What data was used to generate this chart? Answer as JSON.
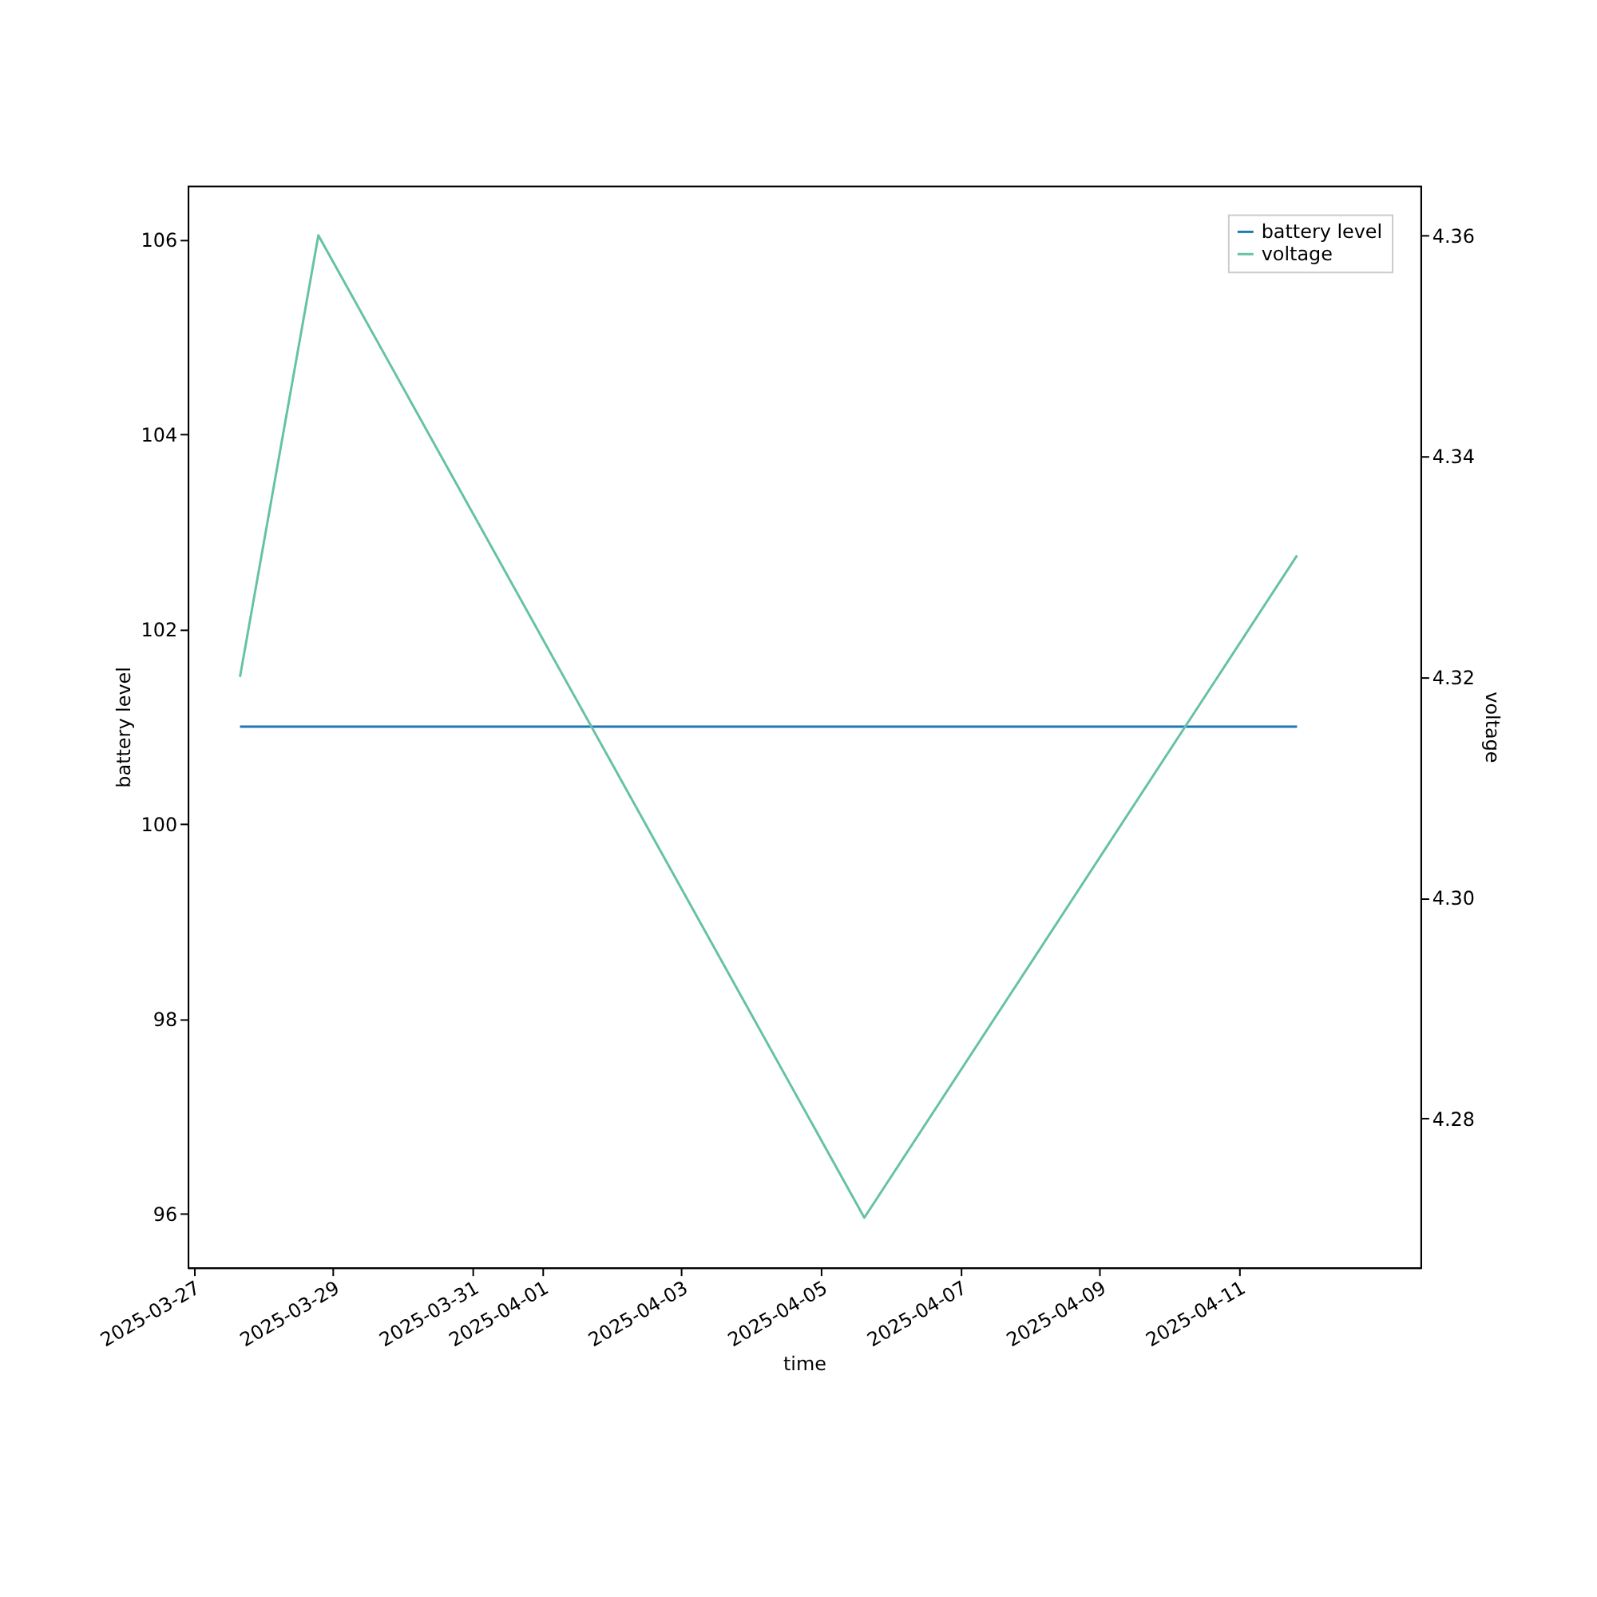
{
  "chart_data": {
    "type": "line",
    "xlabel": "time",
    "ylabel": "battery level",
    "y2label": "voltage",
    "xlim": [
      "2025-03-26T22:00",
      "2025-04-13T14:30"
    ],
    "xticks": [
      {
        "value": "2025-03-27",
        "label": "2025-03-27"
      },
      {
        "value": "2025-03-29",
        "label": "2025-03-29"
      },
      {
        "value": "2025-03-31",
        "label": "2025-03-31"
      },
      {
        "value": "2025-04-01",
        "label": "2025-04-01"
      },
      {
        "value": "2025-04-03",
        "label": "2025-04-03"
      },
      {
        "value": "2025-04-05",
        "label": "2025-04-05"
      },
      {
        "value": "2025-04-07",
        "label": "2025-04-07"
      },
      {
        "value": "2025-04-09",
        "label": "2025-04-09"
      },
      {
        "value": "2025-04-11",
        "label": "2025-04-11"
      }
    ],
    "ylim": [
      95.45,
      106.55
    ],
    "yticks": [
      96,
      98,
      100,
      102,
      104,
      106
    ],
    "y2lim": [
      4.2665,
      4.3645
    ],
    "y2ticks": [
      4.28,
      {
        "value": 4.3,
        "label": "4.30"
      },
      4.32,
      4.34,
      4.36
    ],
    "series": [
      {
        "name": "battery level",
        "color": "#1f77b4",
        "x": [
          "2025-03-27T16:00",
          "2025-04-11T20:00"
        ],
        "values": [
          101,
          101
        ]
      },
      {
        "name": "voltage",
        "color": "#66c2a5",
        "axis": "y2",
        "x": [
          "2025-03-27T16:00",
          "2025-03-28T19:00",
          "2025-04-05T15:00",
          "2025-04-11T20:00"
        ],
        "values": [
          4.32,
          4.36,
          4.271,
          4.331
        ]
      }
    ],
    "grid": false,
    "legend": "top right"
  }
}
